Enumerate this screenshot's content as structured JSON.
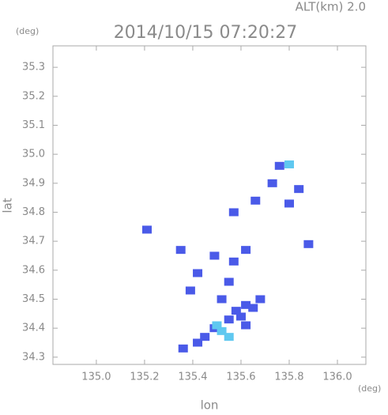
{
  "chart_data": {
    "type": "scatter",
    "title": "2014/10/15 07:20:27",
    "annotation": "ALT(km) 2.0",
    "y_unit": "(deg)",
    "x_unit": "(deg)",
    "xlabel": "lon",
    "ylabel": "lat",
    "xlim": [
      134.82,
      136.118
    ],
    "ylim": [
      34.275,
      35.374
    ],
    "xticks": [
      {
        "value": 135,
        "label": "135.0"
      },
      135.2,
      135.4,
      135.6,
      135.8,
      {
        "value": 136,
        "label": "136.0"
      }
    ],
    "yticks": [
      34.3,
      34.4,
      34.5,
      34.6,
      34.7,
      34.8,
      34.9,
      {
        "value": 35,
        "label": "35.0"
      },
      35.1,
      35.2,
      35.3
    ],
    "series": [
      {
        "color": "#4a5ae8",
        "x": [
          135.76,
          135.73,
          135.84,
          135.8,
          135.66,
          135.57,
          135.21,
          135.88,
          135.35,
          135.49,
          135.57,
          135.62,
          135.42,
          135.55,
          135.39,
          135.52,
          135.62,
          135.58,
          135.65,
          135.55,
          135.62,
          135.49,
          135.45,
          135.42,
          135.36,
          135.6,
          135.68
        ],
        "values": [
          34.96,
          34.9,
          34.88,
          34.83,
          34.84,
          34.8,
          34.74,
          34.69,
          34.67,
          34.65,
          34.63,
          34.67,
          34.59,
          34.56,
          34.53,
          34.5,
          34.48,
          34.46,
          34.47,
          34.43,
          34.41,
          34.4,
          34.37,
          34.35,
          34.33,
          34.44,
          34.5
        ]
      },
      {
        "color": "#5fc8f0",
        "x": [
          135.8,
          135.52,
          135.55,
          135.5
        ],
        "values": [
          34.965,
          34.39,
          34.37,
          34.41
        ]
      }
    ]
  }
}
